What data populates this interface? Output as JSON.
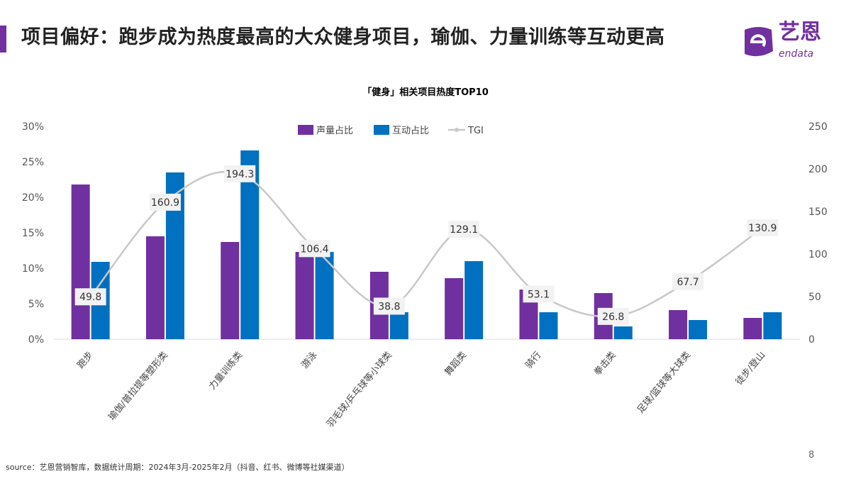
{
  "header": {
    "title": "项目偏好：跑步成为热度最高的大众健身项目，瑜伽、力量训练等互动更高",
    "logo_cn": "艺恩",
    "logo_en": "endata"
  },
  "footer": {
    "source": "source：艺恩营销智库，数据统计周期：2024年3月-2025年2月（抖音、红书、微博等社媒渠道）",
    "page": "8"
  },
  "colors": {
    "accent": "#7030a0",
    "series1": "#7030a0",
    "series2": "#0070c0",
    "line": "#c8c8c8"
  },
  "chart_data": {
    "type": "bar",
    "title": "「健身」相关项目热度TOP10",
    "categories": [
      "跑步",
      "瑜伽/普拉提等塑形类",
      "力量训练类",
      "游泳",
      "羽毛球/乒乓球等小球类",
      "舞蹈类",
      "骑行",
      "拳击类",
      "足球/篮球等大球类",
      "徒步/登山"
    ],
    "series": [
      {
        "name": "声量占比",
        "axis": "left",
        "type": "bar",
        "values": [
          21.8,
          14.5,
          13.7,
          12.3,
          9.5,
          8.6,
          7.0,
          6.5,
          4.1,
          3.0
        ]
      },
      {
        "name": "互动占比",
        "axis": "left",
        "type": "bar",
        "values": [
          10.9,
          23.5,
          26.6,
          12.3,
          3.8,
          11.0,
          3.8,
          1.8,
          2.7,
          3.8
        ]
      },
      {
        "name": "TGI",
        "axis": "right",
        "type": "line",
        "values": [
          49.8,
          160.9,
          194.3,
          106.4,
          38.8,
          129.1,
          53.1,
          26.8,
          67.7,
          130.9
        ]
      }
    ],
    "ylim_left": [
      0,
      30
    ],
    "yticks_left": [
      "0%",
      "5%",
      "10%",
      "15%",
      "20%",
      "25%",
      "30%"
    ],
    "ylim_right": [
      0,
      250
    ],
    "yticks_right": [
      "0",
      "50",
      "100",
      "150",
      "200",
      "250"
    ],
    "legend": "top-center",
    "grid": false
  }
}
